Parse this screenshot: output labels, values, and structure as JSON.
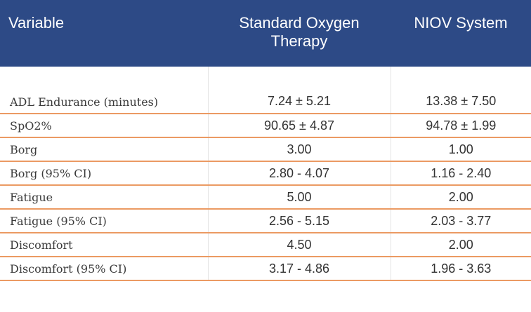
{
  "table": {
    "header": [
      "Variable",
      "Standard Oxygen Therapy",
      "NIOV System"
    ],
    "rows": [
      [
        "ADL Endurance (minutes)",
        "7.24 ± 5.21",
        "13.38 ± 7.50"
      ],
      [
        "SpO2%",
        "90.65 ± 4.87",
        "94.78 ± 1.99"
      ],
      [
        "Borg",
        "3.00",
        "1.00"
      ],
      [
        "Borg (95% CI)",
        "2.80 - 4.07",
        "1.16 - 2.40"
      ],
      [
        "Fatigue",
        "5.00",
        "2.00"
      ],
      [
        "Fatigue (95% CI)",
        "2.56 - 5.15",
        "2.03 - 3.77"
      ],
      [
        "Discomfort",
        "4.50",
        "2.00"
      ],
      [
        "Discomfort (95% CI)",
        "3.17 - 4.86",
        "1.96 - 3.63"
      ]
    ]
  }
}
